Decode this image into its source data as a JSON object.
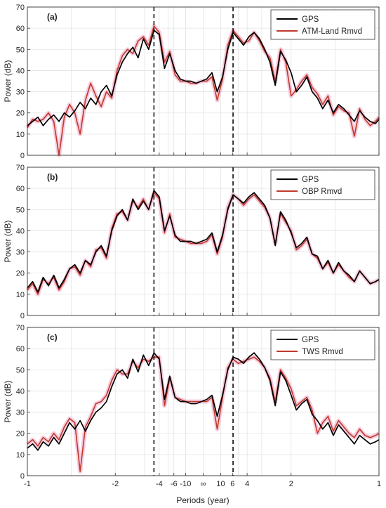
{
  "figure": {
    "xlabel": "Periods (year)",
    "x_tick_labels": [
      "-1",
      "-2",
      "-4",
      "-6",
      "-10",
      "∞",
      "10",
      "6",
      "4",
      "2",
      "1"
    ],
    "y_tick_labels": [
      "0",
      "10",
      "20",
      "30",
      "40",
      "50",
      "60",
      "70"
    ],
    "colors": {
      "gps": "#000000",
      "residual": "#c0392b",
      "band": "#f4b6d2",
      "grid": "#e3e3e3",
      "dashed": "#000000"
    }
  },
  "chart_data": [
    {
      "type": "line",
      "panel_label": "(a)",
      "ylabel": "Power (dB)",
      "xlabel": "",
      "ylim": [
        0,
        70
      ],
      "x_axis": "frequency (cycles/year)",
      "xlim": [
        -1,
        1
      ],
      "grid": true,
      "legend_position": "top-right",
      "reference_lines_x": [
        -0.28,
        0.17
      ],
      "x": [
        -1.0,
        -0.97,
        -0.94,
        -0.91,
        -0.88,
        -0.85,
        -0.82,
        -0.79,
        -0.76,
        -0.73,
        -0.7,
        -0.67,
        -0.64,
        -0.61,
        -0.58,
        -0.55,
        -0.52,
        -0.49,
        -0.46,
        -0.43,
        -0.4,
        -0.37,
        -0.34,
        -0.31,
        -0.28,
        -0.25,
        -0.22,
        -0.19,
        -0.16,
        -0.13,
        -0.1,
        -0.07,
        -0.04,
        -0.01,
        0.02,
        0.05,
        0.08,
        0.11,
        0.14,
        0.17,
        0.2,
        0.23,
        0.26,
        0.29,
        0.32,
        0.35,
        0.38,
        0.41,
        0.44,
        0.47,
        0.5,
        0.53,
        0.56,
        0.59,
        0.62,
        0.65,
        0.68,
        0.71,
        0.74,
        0.77,
        0.8,
        0.83,
        0.86,
        0.89,
        0.92,
        0.95,
        0.98,
        1.0
      ],
      "series": [
        {
          "name": "GPS",
          "values": [
            14,
            16,
            18,
            14,
            17,
            19,
            16,
            20,
            18,
            21,
            25,
            22,
            27,
            24,
            30,
            33,
            28,
            38,
            44,
            48,
            51,
            46,
            55,
            50,
            59,
            57,
            41,
            48,
            40,
            36,
            35,
            35,
            34,
            35,
            36,
            39,
            30,
            37,
            50,
            58,
            55,
            52,
            56,
            58,
            55,
            50,
            44,
            33,
            49,
            45,
            39,
            30,
            33,
            37,
            30,
            27,
            22,
            26,
            20,
            24,
            22,
            19,
            16,
            21,
            18,
            16,
            15,
            17
          ]
        },
        {
          "name": "ATM-Land Rmvd",
          "values": [
            13,
            17,
            16,
            17,
            20,
            16,
            0,
            18,
            24,
            20,
            10,
            26,
            34,
            28,
            23,
            30,
            27,
            40,
            47,
            50,
            48,
            54,
            56,
            52,
            61,
            58,
            44,
            49,
            38,
            35,
            35,
            34,
            34,
            35,
            35,
            37,
            26,
            36,
            52,
            59,
            56,
            53,
            54,
            58,
            54,
            49,
            46,
            35,
            50,
            44,
            28,
            31,
            35,
            38,
            32,
            29,
            24,
            28,
            19,
            23,
            21,
            20,
            9,
            22,
            17,
            14,
            16,
            18
          ]
        }
      ]
    },
    {
      "type": "line",
      "panel_label": "(b)",
      "ylabel": "Power (dB)",
      "xlabel": "",
      "ylim": [
        0,
        70
      ],
      "x_axis": "frequency (cycles/year)",
      "xlim": [
        -1,
        1
      ],
      "grid": true,
      "legend_position": "top-right",
      "reference_lines_x": [
        -0.28,
        0.17
      ],
      "x": [
        -1.0,
        -0.97,
        -0.94,
        -0.91,
        -0.88,
        -0.85,
        -0.82,
        -0.79,
        -0.76,
        -0.73,
        -0.7,
        -0.67,
        -0.64,
        -0.61,
        -0.58,
        -0.55,
        -0.52,
        -0.49,
        -0.46,
        -0.43,
        -0.4,
        -0.37,
        -0.34,
        -0.31,
        -0.28,
        -0.25,
        -0.22,
        -0.19,
        -0.16,
        -0.13,
        -0.1,
        -0.07,
        -0.04,
        -0.01,
        0.02,
        0.05,
        0.08,
        0.11,
        0.14,
        0.17,
        0.2,
        0.23,
        0.26,
        0.29,
        0.32,
        0.35,
        0.38,
        0.41,
        0.44,
        0.47,
        0.5,
        0.53,
        0.56,
        0.59,
        0.62,
        0.65,
        0.68,
        0.71,
        0.74,
        0.77,
        0.8,
        0.83,
        0.86,
        0.89,
        0.92,
        0.95,
        0.98,
        1.0
      ],
      "series": [
        {
          "name": "GPS",
          "values": [
            13,
            16,
            11,
            18,
            14,
            19,
            13,
            17,
            22,
            24,
            20,
            26,
            24,
            30,
            33,
            28,
            40,
            47,
            50,
            45,
            55,
            50,
            54,
            50,
            59,
            56,
            40,
            47,
            38,
            35,
            35,
            35,
            34,
            35,
            36,
            39,
            30,
            38,
            50,
            57,
            55,
            53,
            56,
            58,
            55,
            52,
            46,
            33,
            49,
            45,
            39,
            32,
            34,
            37,
            29,
            28,
            22,
            26,
            20,
            25,
            21,
            19,
            16,
            21,
            18,
            15,
            16,
            17
          ]
        },
        {
          "name": "OBP Rmvd",
          "values": [
            12,
            15,
            10,
            17,
            15,
            18,
            12,
            16,
            22,
            23,
            19,
            26,
            23,
            31,
            32,
            27,
            41,
            48,
            49,
            45,
            54,
            51,
            55,
            50,
            58,
            55,
            39,
            48,
            37,
            36,
            35,
            34,
            34,
            34,
            35,
            38,
            29,
            37,
            51,
            57,
            55,
            52,
            55,
            57,
            54,
            51,
            46,
            34,
            48,
            44,
            40,
            31,
            33,
            36,
            29,
            27,
            22,
            25,
            20,
            24,
            21,
            18,
            16,
            21,
            18,
            15,
            16,
            17
          ]
        }
      ]
    },
    {
      "type": "line",
      "panel_label": "(c)",
      "ylabel": "Power (dB)",
      "xlabel": "Periods (year)",
      "ylim": [
        0,
        70
      ],
      "x_axis": "frequency (cycles/year)",
      "xlim": [
        -1,
        1
      ],
      "grid": true,
      "legend_position": "top-right",
      "reference_lines_x": [
        -0.28,
        0.17
      ],
      "x": [
        -1.0,
        -0.97,
        -0.94,
        -0.91,
        -0.88,
        -0.85,
        -0.82,
        -0.79,
        -0.76,
        -0.73,
        -0.7,
        -0.67,
        -0.64,
        -0.61,
        -0.58,
        -0.55,
        -0.52,
        -0.49,
        -0.46,
        -0.43,
        -0.4,
        -0.37,
        -0.34,
        -0.31,
        -0.28,
        -0.25,
        -0.22,
        -0.19,
        -0.16,
        -0.13,
        -0.1,
        -0.07,
        -0.04,
        -0.01,
        0.02,
        0.05,
        0.08,
        0.11,
        0.14,
        0.17,
        0.2,
        0.23,
        0.26,
        0.29,
        0.32,
        0.35,
        0.38,
        0.41,
        0.44,
        0.47,
        0.5,
        0.53,
        0.56,
        0.59,
        0.62,
        0.65,
        0.68,
        0.71,
        0.74,
        0.77,
        0.8,
        0.83,
        0.86,
        0.89,
        0.92,
        0.95,
        0.98,
        1.0
      ],
      "series": [
        {
          "name": "GPS",
          "values": [
            13,
            15,
            12,
            16,
            14,
            18,
            15,
            20,
            25,
            22,
            26,
            21,
            26,
            30,
            32,
            35,
            42,
            48,
            50,
            46,
            55,
            49,
            57,
            52,
            58,
            55,
            36,
            47,
            37,
            35,
            35,
            34,
            34,
            35,
            36,
            38,
            28,
            38,
            50,
            56,
            55,
            53,
            56,
            58,
            55,
            51,
            45,
            33,
            49,
            45,
            38,
            31,
            34,
            36,
            29,
            26,
            22,
            25,
            19,
            24,
            21,
            18,
            15,
            19,
            17,
            15,
            16,
            17
          ]
        },
        {
          "name": "TWS Rmvd",
          "values": [
            15,
            17,
            14,
            18,
            16,
            20,
            17,
            23,
            27,
            25,
            2,
            23,
            28,
            34,
            35,
            38,
            45,
            50,
            48,
            48,
            54,
            51,
            55,
            54,
            56,
            56,
            33,
            46,
            37,
            36,
            35,
            35,
            35,
            35,
            35,
            37,
            22,
            37,
            51,
            55,
            53,
            54,
            55,
            56,
            54,
            51,
            46,
            35,
            50,
            46,
            41,
            33,
            35,
            37,
            31,
            20,
            25,
            28,
            21,
            26,
            23,
            20,
            18,
            22,
            19,
            18,
            19,
            20
          ]
        }
      ]
    }
  ]
}
